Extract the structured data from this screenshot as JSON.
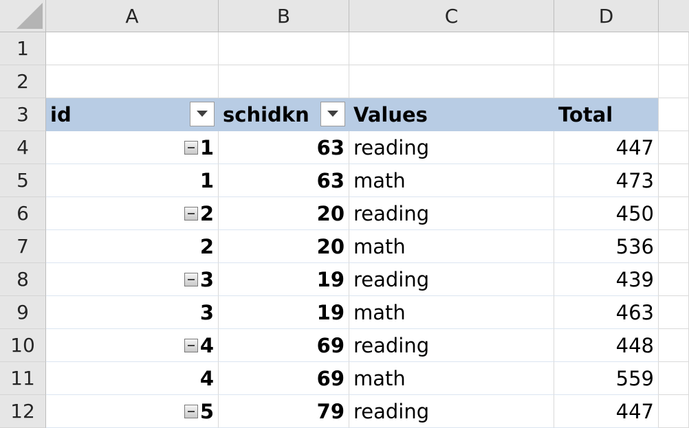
{
  "columns": [
    "A",
    "B",
    "C",
    "D"
  ],
  "row_numbers": [
    "1",
    "2",
    "3",
    "4",
    "5",
    "6",
    "7",
    "8",
    "9",
    "10",
    "11",
    "12"
  ],
  "pivot": {
    "headers": {
      "id": "id",
      "schidkn": "schidkn",
      "values": "Values",
      "total": "Total"
    },
    "rows": [
      {
        "id": "1",
        "collapsible": true,
        "schidkn": "63",
        "values": "reading",
        "total": "447"
      },
      {
        "id": "1",
        "collapsible": false,
        "schidkn": "63",
        "values": "math",
        "total": "473"
      },
      {
        "id": "2",
        "collapsible": true,
        "schidkn": "20",
        "values": "reading",
        "total": "450"
      },
      {
        "id": "2",
        "collapsible": false,
        "schidkn": "20",
        "values": "math",
        "total": "536"
      },
      {
        "id": "3",
        "collapsible": true,
        "schidkn": "19",
        "values": "reading",
        "total": "439"
      },
      {
        "id": "3",
        "collapsible": false,
        "schidkn": "19",
        "values": "math",
        "total": "463"
      },
      {
        "id": "4",
        "collapsible": true,
        "schidkn": "69",
        "values": "reading",
        "total": "448"
      },
      {
        "id": "4",
        "collapsible": false,
        "schidkn": "69",
        "values": "math",
        "total": "559"
      },
      {
        "id": "5",
        "collapsible": true,
        "schidkn": "79",
        "values": "reading",
        "total": "447"
      }
    ]
  },
  "icons": {
    "filter": "dropdown-arrow-icon",
    "collapse": "collapse-minus-icon",
    "select_all": "select-all-triangle-icon"
  },
  "colors": {
    "header_fill": "#b8cce4",
    "chrome_fill": "#e6e6e6",
    "gridline": "#d9d9d9"
  }
}
